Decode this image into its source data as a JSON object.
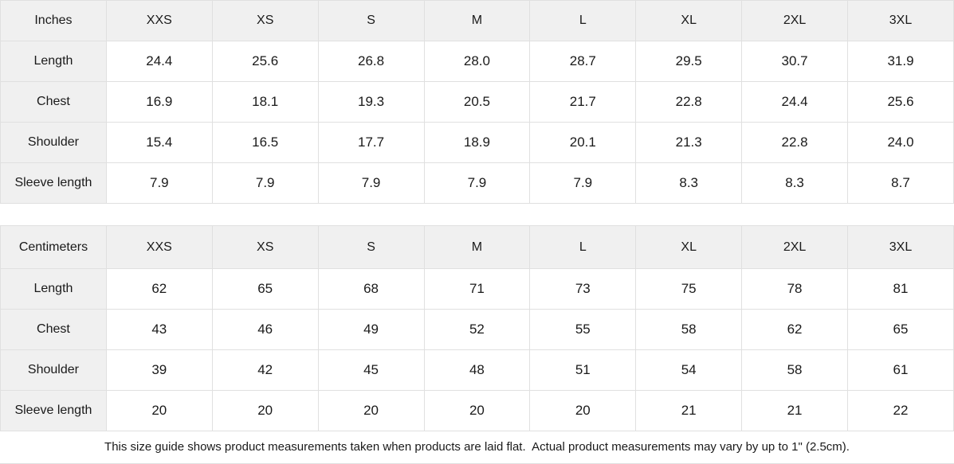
{
  "sizes": [
    "XXS",
    "XS",
    "S",
    "M",
    "L",
    "XL",
    "2XL",
    "3XL"
  ],
  "tables": [
    {
      "unit_label": "Inches",
      "rows": [
        {
          "label": "Length",
          "values": [
            "24.4",
            "25.6",
            "26.8",
            "28.0",
            "28.7",
            "29.5",
            "30.7",
            "31.9"
          ]
        },
        {
          "label": "Chest",
          "values": [
            "16.9",
            "18.1",
            "19.3",
            "20.5",
            "21.7",
            "22.8",
            "24.4",
            "25.6"
          ]
        },
        {
          "label": "Shoulder",
          "values": [
            "15.4",
            "16.5",
            "17.7",
            "18.9",
            "20.1",
            "21.3",
            "22.8",
            "24.0"
          ]
        },
        {
          "label": "Sleeve length",
          "values": [
            "7.9",
            "7.9",
            "7.9",
            "7.9",
            "7.9",
            "8.3",
            "8.3",
            "8.7"
          ]
        }
      ]
    },
    {
      "unit_label": "Centimeters",
      "rows": [
        {
          "label": "Length",
          "values": [
            "62",
            "65",
            "68",
            "71",
            "73",
            "75",
            "78",
            "81"
          ]
        },
        {
          "label": "Chest",
          "values": [
            "43",
            "46",
            "49",
            "52",
            "55",
            "58",
            "62",
            "65"
          ]
        },
        {
          "label": "Shoulder",
          "values": [
            "39",
            "42",
            "45",
            "48",
            "51",
            "54",
            "58",
            "61"
          ]
        },
        {
          "label": "Sleeve length",
          "values": [
            "20",
            "20",
            "20",
            "20",
            "20",
            "21",
            "21",
            "22"
          ]
        }
      ]
    }
  ],
  "footnote": "This size guide shows product measurements taken when products are laid flat.  Actual product measurements may vary by up to 1\" (2.5cm).",
  "colors": {
    "header_bg": "#f0f0f0",
    "border": "#e0e0e0",
    "text": "#1a1a1a"
  }
}
